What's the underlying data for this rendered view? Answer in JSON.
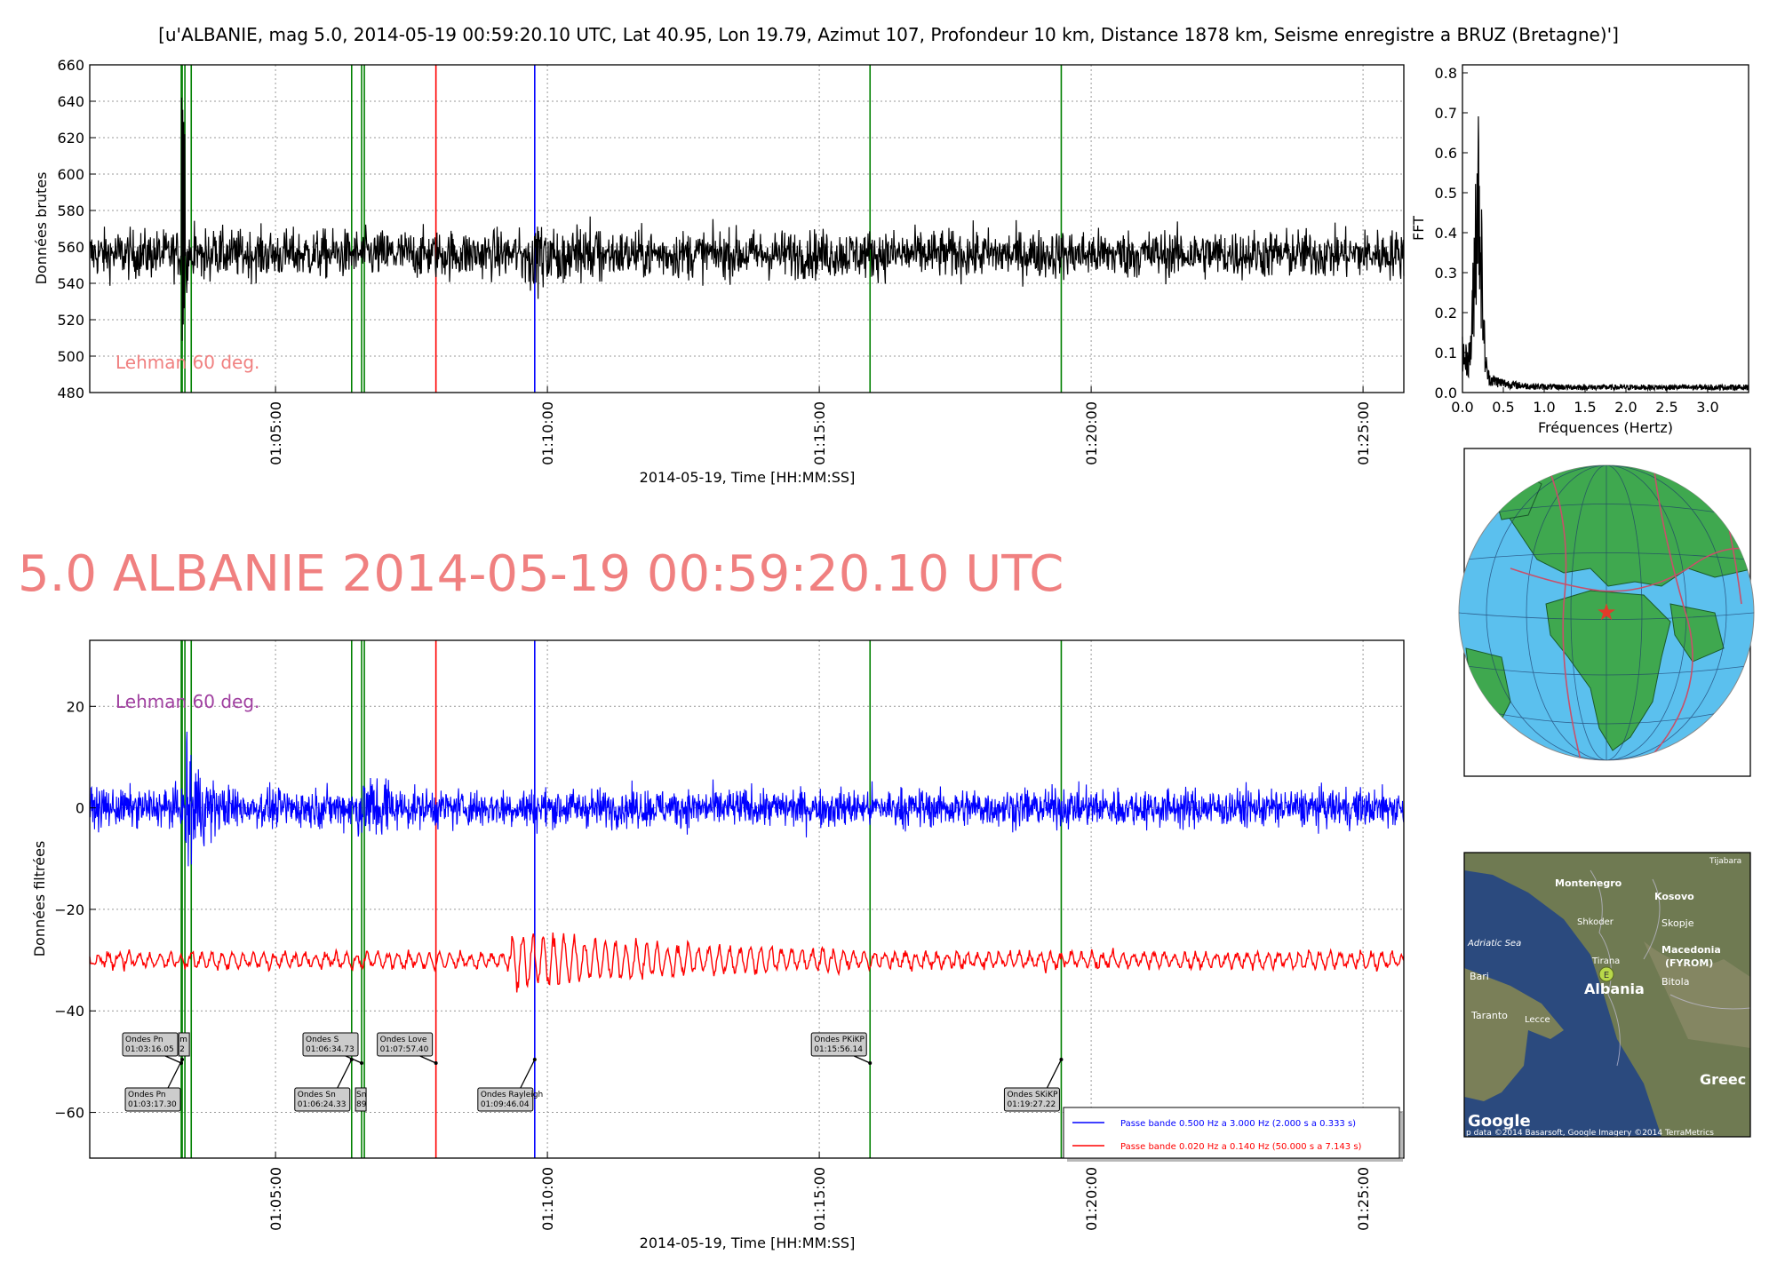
{
  "figure_title": "[u'ALBANIE, mag 5.0, 2014-05-19 00:59:20.10 UTC, Lat 40.95, Lon 19.79, Azimut 107, Profondeur 10 km, Distance  1878 km, Seisme enregistre a BRUZ (Bretagne)']",
  "big_title": "5.0 ALBANIE 2014-05-19 00:59:20.10 UTC",
  "colors": {
    "raw_trace": "#000000",
    "blue_band": "#0000ff",
    "red_band": "#ff0000",
    "p_lines": "#008000",
    "love_line": "#ff0000",
    "rayleigh_line": "#0000ff",
    "big_title": "#f08080",
    "lehman_top": "#f08080",
    "lehman_bottom": "#a040a0"
  },
  "chart_data": [
    {
      "id": "raw",
      "type": "line",
      "xlabel": "2014-05-19, Time [HH:MM:SS]",
      "ylabel": "Données brutes",
      "xlim": [
        "01:01:35",
        "01:25:45"
      ],
      "ylim": [
        480,
        660
      ],
      "yticks": [
        "480",
        "500",
        "520",
        "540",
        "560",
        "580",
        "600",
        "620",
        "640",
        "660"
      ],
      "xticks": [
        "01:05:00",
        "01:10:00",
        "01:15:00",
        "01:20:00",
        "01:25:00"
      ],
      "grid": true,
      "annotation": "Lehman 60 deg.",
      "series": [
        {
          "color": "#000000",
          "baseline": 556,
          "noise_amplitude": 12,
          "notable_peaks": [
            {
              "x": "01:03:16",
              "max": 645,
              "min": 500
            }
          ]
        }
      ],
      "vlines": [
        {
          "x": "01:03:16",
          "color": "green"
        },
        {
          "x": "01:03:17",
          "color": "green"
        },
        {
          "x": "01:03:20",
          "color": "green"
        },
        {
          "x": "01:03:27",
          "color": "green"
        },
        {
          "x": "01:06:24",
          "color": "green"
        },
        {
          "x": "01:06:35",
          "color": "green"
        },
        {
          "x": "01:06:38",
          "color": "green"
        },
        {
          "x": "01:07:57",
          "color": "red"
        },
        {
          "x": "01:09:46",
          "color": "blue"
        },
        {
          "x": "01:15:56",
          "color": "green"
        },
        {
          "x": "01:19:27",
          "color": "green"
        }
      ]
    },
    {
      "id": "fft",
      "type": "line",
      "xlabel": "Fréquences (Hertz)",
      "ylabel": "FFT",
      "xlim": [
        0,
        3.5
      ],
      "ylim": [
        0,
        0.82
      ],
      "xticks": [
        "0.0",
        "0.5",
        "1.0",
        "1.5",
        "2.0",
        "2.5",
        "3.0"
      ],
      "yticks": [
        "0.0",
        "0.1",
        "0.2",
        "0.3",
        "0.4",
        "0.5",
        "0.6",
        "0.7",
        "0.8"
      ],
      "series": [
        {
          "color": "#000000",
          "peak": {
            "x": 0.19,
            "y": 0.7
          },
          "floor": 0.02
        }
      ]
    },
    {
      "id": "filtered",
      "type": "line",
      "xlabel": "2014-05-19, Time [HH:MM:SS]",
      "ylabel": "Données filtrées",
      "xlim": [
        "01:01:35",
        "01:25:45"
      ],
      "ylim": [
        -69,
        33
      ],
      "yticks": [
        "−60",
        "−40",
        "−20",
        "0",
        "20"
      ],
      "xticks": [
        "01:05:00",
        "01:10:00",
        "01:15:00",
        "01:20:00",
        "01:25:00"
      ],
      "grid": true,
      "annotation": "Lehman 60 deg.",
      "series": [
        {
          "name": "Passe bande 0.500 Hz a 3.000 Hz (2.000 s a 0.333 s)",
          "color": "#0000ff",
          "baseline": 0,
          "noise_amplitude": 2.3,
          "burst": {
            "x": "01:03:20",
            "max": 15,
            "min": -15
          }
        },
        {
          "name": "Passe bande 0.020 Hz a 0.140 Hz (50.000 s a 7.143 s)",
          "color": "#ff0000",
          "baseline": -30,
          "noise_amplitude": 1.5,
          "surface_wave": {
            "from": "01:09:20",
            "to": "01:15:30",
            "amplitude": 5
          }
        }
      ],
      "phase_labels": [
        {
          "label": "Ondes Pn",
          "time": "01:03:16.05",
          "x": "01:03:16",
          "row": "top"
        },
        {
          "label": "Ondes Pn",
          "time": "01:03:17.30",
          "x": "01:03:17",
          "row": "bottom"
        },
        {
          "label": "Ondes S",
          "time": "01:06:34.73",
          "x": "01:06:35",
          "row": "top"
        },
        {
          "label": "Ondes Sn",
          "time": "01:06:24.33",
          "x": "01:06:24",
          "row": "bottom"
        },
        {
          "label": "Ondes Love",
          "time": "01:07:57.40",
          "x": "01:07:57",
          "row": "top"
        },
        {
          "label": "Ondes Rayleigh",
          "time": "01:09:46.04",
          "x": "01:09:46",
          "row": "bottom"
        },
        {
          "label": "Ondes PKiKP",
          "time": "01:15:56.14",
          "x": "01:15:56",
          "row": "top"
        },
        {
          "label": "Ondes SKiKP",
          "time": "01:19:27.22",
          "x": "01:19:27",
          "row": "bottom"
        }
      ],
      "partial_labels": [
        {
          "text_top": "m",
          "text_bottom": "2",
          "row": "top",
          "x": "01:03:23"
        },
        {
          "text_top": "Sn",
          "text_bottom": "89",
          "row": "bottom",
          "x": "01:06:38"
        }
      ]
    }
  ],
  "map_labels": {
    "tijabara": "Tijabara",
    "montenegro": "Montenegro",
    "kosovo": "Kosovo",
    "shkoder": "Shkoder",
    "skopje": "Skopje",
    "adriatic": "Adriatic Sea",
    "tirana": "Tirana",
    "macedonia1": "Macedonia",
    "macedonia2": "(FYROM)",
    "bari": "Bari",
    "albania": "Albania",
    "bitola": "Bitola",
    "taranto": "Taranto",
    "lecce": "Lecce",
    "greece": "Greec",
    "google": "Google",
    "attribution": "p data ©2014 Basarsoft, Google  Imagery ©2014 TerraMetrics",
    "marker": "E"
  }
}
